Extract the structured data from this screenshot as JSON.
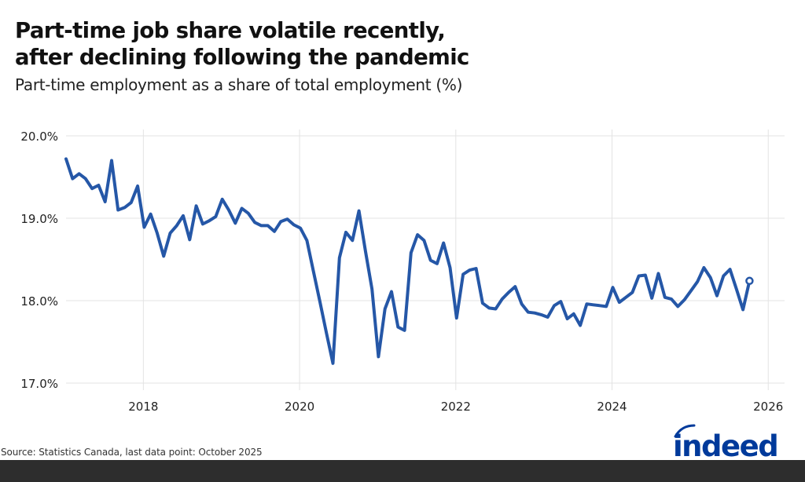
{
  "header": {
    "title_line1": "Part-time job share volatile recently,",
    "title_line2": "after declining following the pandemic",
    "subtitle": "Part-time employment as a share of total employment (%)"
  },
  "footer": {
    "source": "Source: Statistics Canada, last data point: October 2025",
    "logo_text": "indeed"
  },
  "colors": {
    "line": "#2557a7",
    "grid": "#e3e3e3",
    "logo": "#003a9b",
    "band": "#2d2d2d"
  },
  "chart_data": {
    "type": "line",
    "title": "Part-time job share volatile recently, after declining following the pandemic",
    "subtitle": "Part-time employment as a share of total employment (%)",
    "xlabel": "",
    "ylabel": "",
    "ylim": [
      17.0,
      20.0
    ],
    "yticks": [
      17.0,
      18.0,
      19.0,
      20.0
    ],
    "ytick_labels": [
      "17.0%",
      "18.0%",
      "19.0%",
      "20.0%"
    ],
    "xticks": [
      2018,
      2020,
      2022,
      2024,
      2026
    ],
    "xtick_labels": [
      "2018",
      "2020",
      "2022",
      "2024",
      "2026"
    ],
    "grid": true,
    "legend": null,
    "last_point_marker": true,
    "series": [
      {
        "name": "Part-time share of total employment",
        "start": "2017-01",
        "frequency": "monthly",
        "end": "2025-10",
        "values": [
          19.72,
          19.48,
          19.54,
          19.48,
          19.36,
          19.4,
          19.2,
          19.7,
          19.1,
          19.13,
          19.19,
          19.39,
          18.89,
          19.05,
          18.82,
          18.54,
          18.82,
          18.91,
          19.03,
          18.74,
          19.15,
          18.93,
          18.97,
          19.02,
          19.23,
          19.1,
          18.94,
          19.12,
          19.06,
          18.95,
          18.91,
          18.91,
          18.84,
          18.96,
          18.99,
          18.92,
          18.88,
          18.73,
          18.36,
          17.99,
          17.61,
          17.24,
          18.52,
          18.83,
          18.73,
          19.09,
          18.6,
          18.14,
          17.32,
          17.9,
          18.11,
          17.68,
          17.64,
          18.58,
          18.8,
          18.73,
          18.49,
          18.45,
          18.7,
          18.4,
          17.79,
          18.32,
          18.37,
          18.39,
          17.97,
          17.91,
          17.9,
          18.02,
          18.1,
          18.17,
          17.96,
          17.86,
          17.85,
          17.83,
          17.8,
          17.94,
          17.99,
          17.78,
          17.84,
          17.7,
          17.96,
          17.95,
          17.94,
          17.93,
          18.16,
          17.98,
          18.04,
          18.1,
          18.3,
          18.31,
          18.03,
          18.33,
          18.04,
          18.02,
          17.93,
          18.01,
          18.12,
          18.23,
          18.4,
          18.28,
          18.06,
          18.3,
          18.38,
          18.14,
          17.89,
          18.24
        ]
      }
    ]
  }
}
